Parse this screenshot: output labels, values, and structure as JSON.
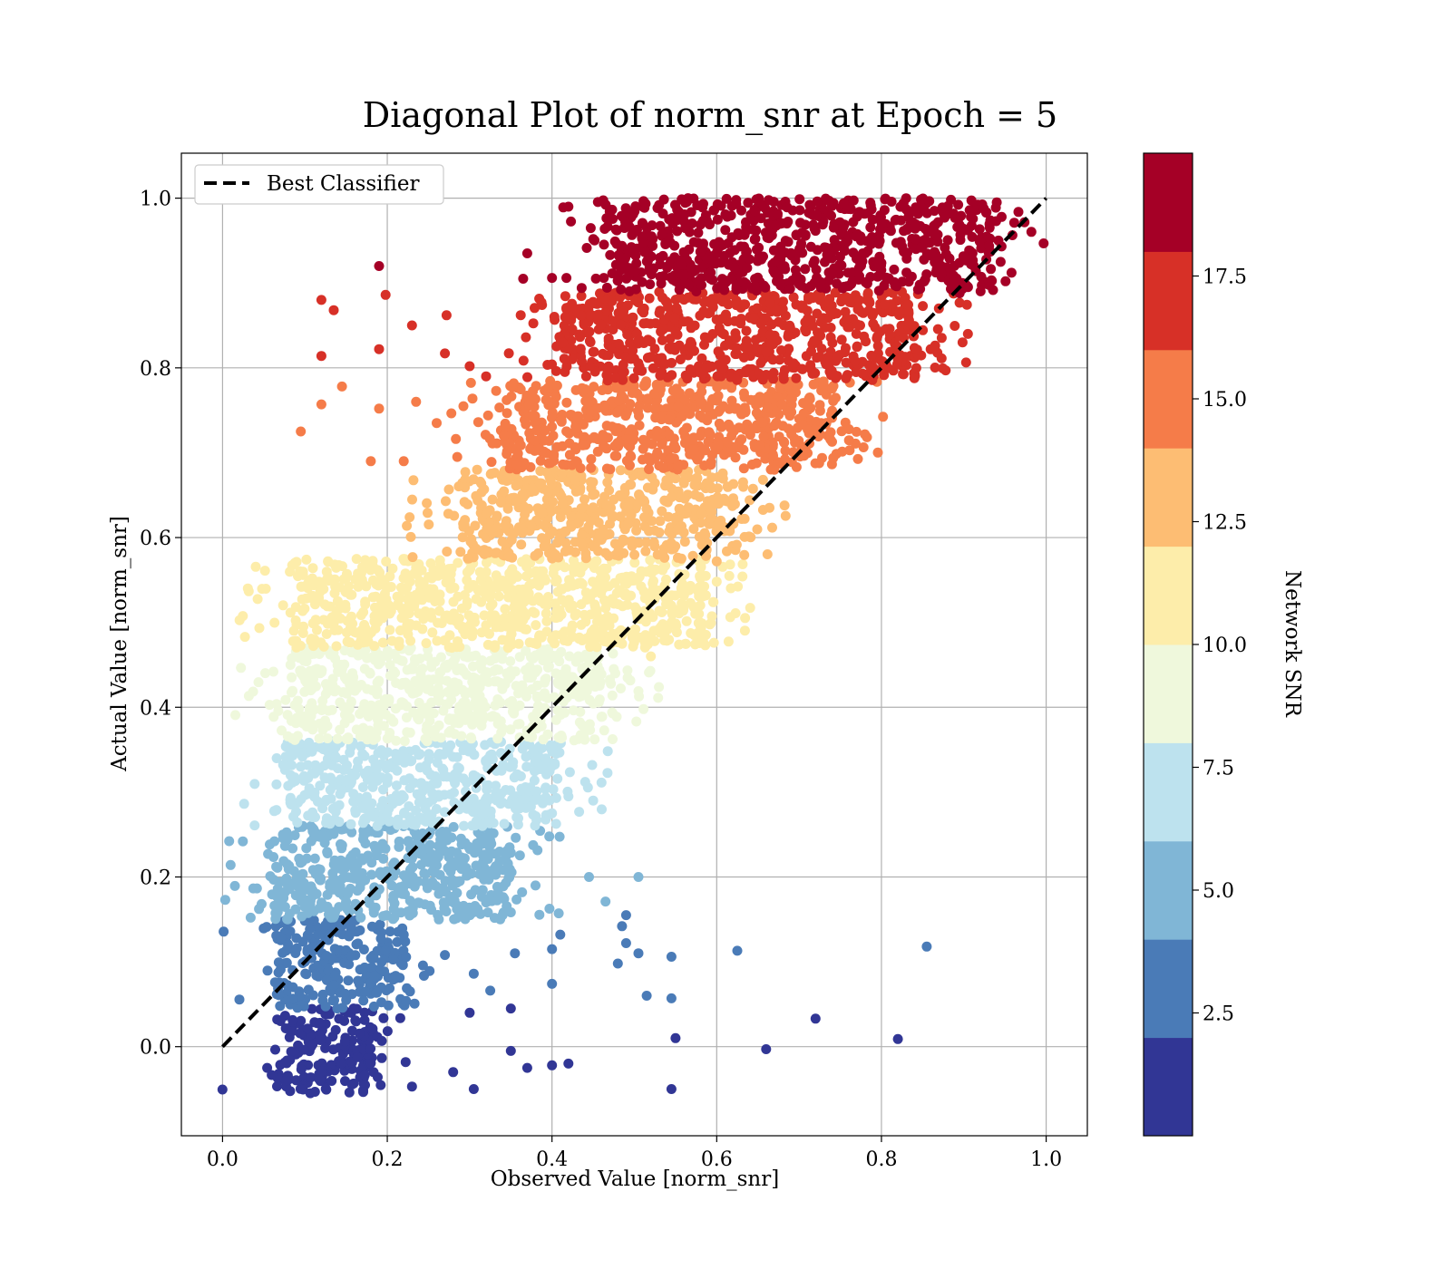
{
  "chart_data": {
    "type": "scatter",
    "title": "Diagonal Plot of norm_snr at Epoch = 5",
    "xlabel": "Observed Value [norm_snr]",
    "ylabel": "Actual Value [norm_snr]",
    "xlim": [
      -0.05,
      1.05
    ],
    "ylim": [
      -0.105,
      1.053
    ],
    "xticks": [
      "0.0",
      "0.2",
      "0.4",
      "0.6",
      "0.8",
      "1.0"
    ],
    "yticks": [
      "0.0",
      "0.2",
      "0.4",
      "0.6",
      "0.8",
      "1.0"
    ],
    "grid": true,
    "legend": {
      "placement": "upper-left",
      "entries": [
        "Best Classifier"
      ]
    },
    "reference_line": {
      "name": "Best Classifier",
      "x": [
        0,
        1
      ],
      "y": [
        0,
        1
      ],
      "style": "dashed",
      "color": "#000000"
    },
    "colorbar": {
      "label": "Network SNR",
      "range": [
        0,
        20
      ],
      "ticks": [
        "2.5",
        "5.0",
        "7.5",
        "10.0",
        "12.5",
        "15.0",
        "17.5"
      ],
      "colors": [
        "#313695",
        "#4a7bb7",
        "#80b6d6",
        "#bde2ee",
        "#eff8dc",
        "#fdedaa",
        "#fdbd73",
        "#f57c49",
        "#d73027",
        "#a50026"
      ]
    },
    "bands": [
      {
        "snr_level": 1,
        "y_range": [
          -0.055,
          0.045
        ],
        "x_core": [
          0.065,
          0.185
        ]
      },
      {
        "snr_level": 2,
        "y_range": [
          0.045,
          0.15
        ],
        "x_core": [
          0.065,
          0.22
        ]
      },
      {
        "snr_level": 3,
        "y_range": [
          0.15,
          0.26
        ],
        "x_core": [
          0.065,
          0.35
        ]
      },
      {
        "snr_level": 4,
        "y_range": [
          0.26,
          0.36
        ],
        "x_core": [
          0.08,
          0.4
        ]
      },
      {
        "snr_level": 5,
        "y_range": [
          0.36,
          0.47
        ],
        "x_core": [
          0.085,
          0.46
        ]
      },
      {
        "snr_level": 6,
        "y_range": [
          0.47,
          0.575
        ],
        "x_core": [
          0.09,
          0.58
        ]
      },
      {
        "snr_level": 7,
        "y_range": [
          0.575,
          0.68
        ],
        "x_core": [
          0.29,
          0.62
        ]
      },
      {
        "snr_level": 8,
        "y_range": [
          0.68,
          0.785
        ],
        "x_core": [
          0.345,
          0.74
        ]
      },
      {
        "snr_level": 9,
        "y_range": [
          0.785,
          0.89
        ],
        "x_core": [
          0.415,
          0.84
        ]
      },
      {
        "snr_level": 10,
        "y_range": [
          0.89,
          1.0
        ],
        "x_core": [
          0.48,
          0.93
        ]
      }
    ],
    "outliers": [
      [
        0.42,
        -0.02,
        1
      ],
      [
        0.55,
        0.01,
        1
      ],
      [
        0.66,
        -0.003,
        1
      ],
      [
        0.72,
        0.033,
        1
      ],
      [
        0.82,
        0.009,
        1
      ],
      [
        0.545,
        -0.05,
        1
      ],
      [
        0.305,
        -0.05,
        1
      ],
      [
        0.37,
        -0.025,
        1
      ],
      [
        0.35,
        0.045,
        1
      ],
      [
        0.4,
        -0.022,
        1
      ],
      [
        0.23,
        -0.047,
        1
      ],
      [
        0.28,
        -0.03,
        1
      ],
      [
        0.3,
        0.04,
        1
      ],
      [
        0.35,
        -0.005,
        1
      ],
      [
        0.855,
        0.118,
        2
      ],
      [
        0.625,
        0.113,
        2
      ],
      [
        0.545,
        0.106,
        2
      ],
      [
        0.505,
        0.11,
        2
      ],
      [
        0.49,
        0.122,
        2
      ],
      [
        0.48,
        0.098,
        2
      ],
      [
        0.515,
        0.06,
        2
      ],
      [
        0.545,
        0.057,
        2
      ],
      [
        0.4,
        0.074,
        2
      ],
      [
        0.4,
        0.115,
        2
      ],
      [
        0.41,
        0.132,
        2
      ],
      [
        0.485,
        0.142,
        2
      ],
      [
        0.49,
        0.155,
        2
      ],
      [
        0.325,
        0.066,
        2
      ],
      [
        0.305,
        0.086,
        2
      ],
      [
        0.355,
        0.11,
        2
      ],
      [
        0.27,
        0.108,
        2
      ],
      [
        0.505,
        0.2,
        3
      ],
      [
        0.445,
        0.2,
        3
      ],
      [
        0.465,
        0.171,
        3
      ],
      [
        0.38,
        0.19,
        3
      ],
      [
        0.335,
        0.186,
        3
      ],
      [
        0.34,
        0.155,
        3
      ],
      [
        0.32,
        0.17,
        3
      ],
      [
        0.45,
        0.29,
        4
      ],
      [
        0.42,
        0.295,
        4
      ],
      [
        0.4,
        0.275,
        4
      ],
      [
        0.505,
        0.419,
        5
      ],
      [
        0.475,
        0.445,
        5
      ],
      [
        0.45,
        0.44,
        5
      ],
      [
        0.6,
        0.548,
        6
      ],
      [
        0.6,
        0.572,
        7
      ],
      [
        0.58,
        0.52,
        6
      ],
      [
        0.52,
        0.46,
        6
      ],
      [
        0.64,
        0.644,
        7
      ],
      [
        0.67,
        0.68,
        8
      ],
      [
        0.695,
        0.712,
        8
      ],
      [
        0.735,
        0.72,
        8
      ],
      [
        0.82,
        0.81,
        9
      ],
      [
        0.895,
        0.888,
        10
      ],
      [
        0.905,
        0.84,
        9
      ],
      [
        0.94,
        0.995,
        10
      ],
      [
        0.19,
        0.92,
        10
      ],
      [
        0.12,
        0.88,
        9
      ],
      [
        0.135,
        0.868,
        9
      ],
      [
        0.198,
        0.886,
        9
      ],
      [
        0.23,
        0.85,
        9
      ],
      [
        0.272,
        0.862,
        9
      ],
      [
        0.27,
        0.817,
        9
      ],
      [
        0.3,
        0.802,
        9
      ],
      [
        0.12,
        0.814,
        9
      ],
      [
        0.19,
        0.822,
        9
      ],
      [
        0.32,
        0.79,
        9
      ],
      [
        0.37,
        0.935,
        10
      ],
      [
        0.365,
        0.905,
        10
      ],
      [
        0.4,
        0.906,
        10
      ],
      [
        0.42,
        0.99,
        10
      ],
      [
        0.095,
        0.725,
        8
      ],
      [
        0.12,
        0.757,
        8
      ],
      [
        0.19,
        0.752,
        8
      ],
      [
        0.235,
        0.76,
        8
      ],
      [
        0.26,
        0.735,
        8
      ],
      [
        0.18,
        0.69,
        8
      ],
      [
        0.22,
        0.69,
        8
      ],
      [
        0.285,
        0.695,
        8
      ],
      [
        0.145,
        0.778,
        8
      ]
    ]
  }
}
